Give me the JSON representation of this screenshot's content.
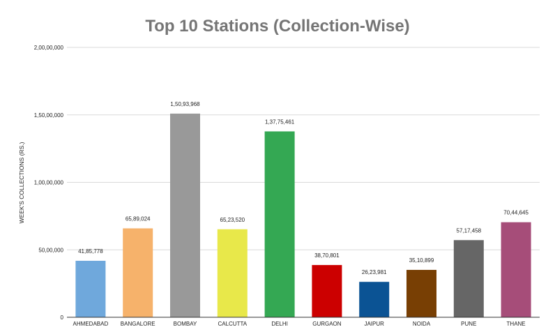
{
  "chart_data": {
    "type": "bar",
    "title": "Top 10 Stations (Collection-Wise)",
    "xlabel": "",
    "ylabel": "WEEK'S COLLECTIONS (RS.)",
    "ylim": [
      0,
      20000000
    ],
    "yticks": [
      {
        "value": 0,
        "label": "0"
      },
      {
        "value": 5000000,
        "label": "50,00,000"
      },
      {
        "value": 10000000,
        "label": "1,00,00,000"
      },
      {
        "value": 15000000,
        "label": "1,50,00,000"
      },
      {
        "value": 20000000,
        "label": "2,00,00,000"
      }
    ],
    "categories": [
      "AHMEDABAD",
      "BANGALORE",
      "BOMBAY",
      "CALCUTTA",
      "DELHI",
      "GURGAON",
      "JAIPUR",
      "NOIDA",
      "PUNE",
      "THANE"
    ],
    "values": [
      4185778,
      6589024,
      15093968,
      6523520,
      13775461,
      3870801,
      2623981,
      3510899,
      5717458,
      7044645
    ],
    "data_labels": [
      "41,85,778",
      "65,89,024",
      "1,50,93,968",
      "65,23,520",
      "1,37,75,461",
      "38,70,801",
      "26,23,981",
      "35,10,899",
      "57,17,458",
      "70,44,645"
    ],
    "colors": [
      "#6fa8dc",
      "#f6b26b",
      "#999999",
      "#e8e84a",
      "#34a853",
      "#cc0000",
      "#0b5394",
      "#783f04",
      "#666666",
      "#a64d79"
    ],
    "grid": true,
    "legend": "none"
  }
}
